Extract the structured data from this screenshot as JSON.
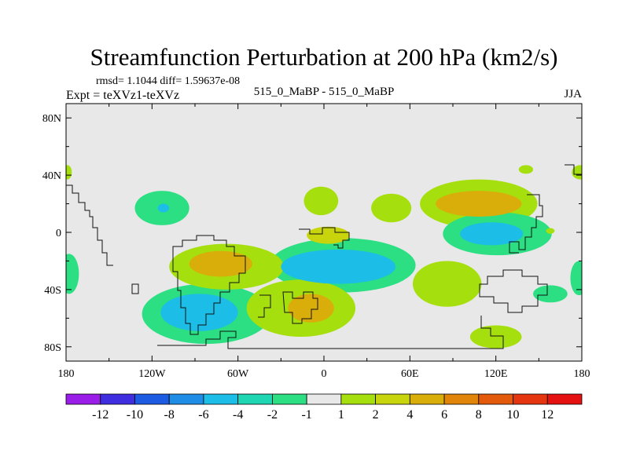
{
  "chart_data": {
    "type": "heatmap",
    "title": "Streamfunction Perturbation at 200 hPa (km2/s)",
    "stats_line": "rmsd= 1.1044 diff= 1.59637e-08",
    "left_subtitle": "Expt = teXVz1-teXVz",
    "center_subtitle": "515_0_MaBP - 515_0_MaBP",
    "right_subtitle": "JJA",
    "xlim": [
      -180,
      180
    ],
    "ylim": [
      -90,
      90
    ],
    "x_ticks": [
      {
        "value": -180,
        "label": "180"
      },
      {
        "value": -120,
        "label": "120W"
      },
      {
        "value": -60,
        "label": "60W"
      },
      {
        "value": 0,
        "label": "0"
      },
      {
        "value": 60,
        "label": "60E"
      },
      {
        "value": 120,
        "label": "120E"
      },
      {
        "value": 180,
        "label": "180"
      }
    ],
    "y_ticks": [
      {
        "value": 80,
        "label": "80N"
      },
      {
        "value": 40,
        "label": "40N"
      },
      {
        "value": 0,
        "label": "0"
      },
      {
        "value": -40,
        "label": "40S"
      },
      {
        "value": -80,
        "label": "80S"
      }
    ],
    "colorbar": {
      "levels": [
        "-12",
        "-10",
        "-8",
        "-6",
        "-4",
        "-2",
        "-1",
        "1",
        "2",
        "4",
        "6",
        "8",
        "10",
        "12"
      ],
      "colors": [
        "#9a1ee8",
        "#3f2de0",
        "#1e5be3",
        "#1f8de6",
        "#1cbde6",
        "#1ed6b2",
        "#2bdf82",
        "#e8e8e8",
        "#a6df0e",
        "#c8d40c",
        "#d9ad0a",
        "#e0840a",
        "#e35a0c",
        "#e43410",
        "#e51010"
      ]
    },
    "features": [
      {
        "name": "negative-center-southeast-pacific",
        "lon": -87,
        "lat": -56,
        "rlon": 27,
        "rlat": 13,
        "level": -4
      },
      {
        "name": "negative-halo-southeast-pacific",
        "lon": -82,
        "lat": -57,
        "rlon": 45,
        "rlat": 21,
        "level": -1
      },
      {
        "name": "positive-center-south-america",
        "lon": -72,
        "lat": -22,
        "rlon": 22,
        "rlat": 9,
        "level": 4
      },
      {
        "name": "positive-halo-south-america",
        "lon": -68,
        "lat": -24,
        "rlon": 40,
        "rlat": 16,
        "level": 1
      },
      {
        "name": "negative-center-south-atlantic",
        "lon": 10,
        "lat": -24,
        "rlon": 40,
        "rlat": 12,
        "level": -4
      },
      {
        "name": "negative-halo-south-atlantic",
        "lon": 13,
        "lat": -23,
        "rlon": 51,
        "rlat": 19,
        "level": -1
      },
      {
        "name": "positive-center-south-africa",
        "lon": -9,
        "lat": -53,
        "rlon": 16,
        "rlat": 10,
        "level": 4
      },
      {
        "name": "positive-halo-south-africa",
        "lon": -16,
        "lat": -53,
        "rlon": 38,
        "rlat": 20,
        "level": 1
      },
      {
        "name": "positive-indian-ocean",
        "lon": 86,
        "lat": -36,
        "rlon": 24,
        "rlat": 16,
        "level": 1
      },
      {
        "name": "negative-center-maritime",
        "lon": 117,
        "lat": -1,
        "rlon": 22,
        "rlat": 8,
        "level": -4
      },
      {
        "name": "negative-halo-maritime",
        "lon": 121,
        "lat": -1,
        "rlon": 38,
        "rlat": 15,
        "level": -1
      },
      {
        "name": "positive-center-asia",
        "lon": 108,
        "lat": 20,
        "rlon": 30,
        "rlat": 9,
        "level": 4
      },
      {
        "name": "positive-halo-asia",
        "lon": 108,
        "lat": 20,
        "rlon": 41,
        "rlat": 17,
        "level": 1
      },
      {
        "name": "positive-arabia",
        "lon": 47,
        "lat": 17,
        "rlon": 14,
        "rlat": 10,
        "level": 1
      },
      {
        "name": "positive-north-africa",
        "lon": -2,
        "lat": 22,
        "rlon": 12,
        "rlat": 10,
        "level": 1
      },
      {
        "name": "negative-center-north-pacific",
        "lon": -112,
        "lat": 17,
        "rlon": 4,
        "rlat": 3,
        "level": -4
      },
      {
        "name": "negative-halo-north-pacific",
        "lon": -113,
        "lat": 17,
        "rlon": 19,
        "rlat": 12,
        "level": -1
      },
      {
        "name": "positive-west-africa",
        "lon": 3,
        "lat": -2,
        "rlon": 15,
        "rlat": 6,
        "level": 2
      },
      {
        "name": "negative-west-edge",
        "lon": -178,
        "lat": -29,
        "rlon": 7,
        "rlat": 14,
        "level": -1
      },
      {
        "name": "negative-east-edge",
        "lon": 178,
        "lat": -32,
        "rlon": 6,
        "rlat": 12,
        "level": -1
      },
      {
        "name": "positive-south-indian",
        "lon": 120,
        "lat": -73,
        "rlon": 18,
        "rlat": 8,
        "level": 1
      },
      {
        "name": "positive-west-edge-north",
        "lon": -179,
        "lat": 42,
        "rlon": 3,
        "rlat": 5,
        "level": 1
      },
      {
        "name": "positive-east-edge-north",
        "lon": 179,
        "lat": 42,
        "rlon": 6,
        "rlat": 5,
        "level": 1
      },
      {
        "name": "positive-japan",
        "lon": 141,
        "lat": 44,
        "rlon": 5,
        "rlat": 3,
        "level": 1
      },
      {
        "name": "positive-pacific-spot",
        "lon": 158,
        "lat": 1,
        "rlon": 3,
        "rlat": 2,
        "level": 1
      },
      {
        "name": "negative-south-pacific-edge",
        "lon": 158,
        "lat": -43,
        "rlon": 12,
        "rlat": 6,
        "level": -1
      }
    ]
  }
}
